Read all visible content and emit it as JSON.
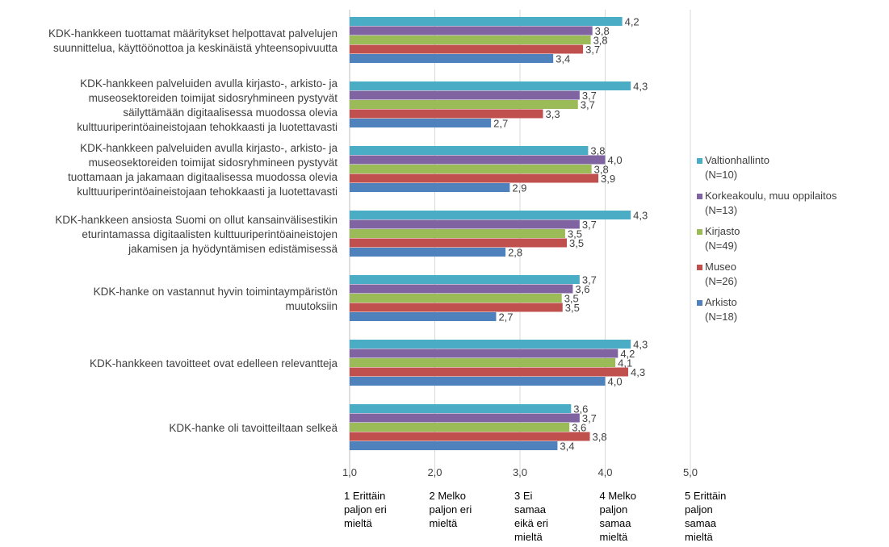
{
  "chart_data": {
    "type": "bar",
    "orientation": "horizontal",
    "categories": [
      [
        "KDK-hankkeen tuottamat määritykset helpottavat palvelujen",
        "suunnittelua, käyttöönottoa ja keskinäistä yhteensopivuutta"
      ],
      [
        "KDK-hankkeen palveluiden avulla kirjasto-, arkisto- ja",
        "museosektoreiden toimijat sidosryhmineen pystyvät",
        "säilyttämään digitaalisessa muodossa olevia",
        "kulttuuriperintöaineistojaan tehokkaasti ja luotettavasti"
      ],
      [
        "KDK-hankkeen palveluiden avulla kirjasto-, arkisto- ja",
        "museosektoreiden toimijat sidosryhmineen pystyvät",
        "tuottamaan ja jakamaan digitaalisessa muodossa olevia",
        "kulttuuriperintöaineistojaan tehokkaasti ja luotettavasti"
      ],
      [
        "KDK-hankkeen ansiosta Suomi on ollut kansainvälisestikin",
        "eturintamassa digitaalisten kulttuuriperintöaineistojen",
        "jakamisen ja hyödyntämisen edistämisessä"
      ],
      [
        "KDK-hanke on vastannut hyvin toimintaympäristön",
        "muutoksiin"
      ],
      [
        "KDK-hankkeen tavoitteet ovat edelleen relevantteja"
      ],
      [
        "KDK-hanke oli tavoitteiltaan selkeä"
      ]
    ],
    "series": [
      {
        "name": "Valtionhallinto",
        "n": "(N=10)",
        "color": "#4bacc6",
        "values": [
          4.2,
          4.3,
          3.8,
          4.3,
          3.7,
          4.3,
          3.6
        ],
        "labels": [
          "4,2",
          "4,3",
          "3,8",
          "4,3",
          "3,7",
          "4,3",
          "3,6"
        ]
      },
      {
        "name": "Korkeakoulu, muu oppilaitos",
        "n": "(N=13)",
        "color": "#8064a2",
        "values": [
          3.85,
          3.7,
          4.0,
          3.7,
          3.62,
          4.15,
          3.7
        ],
        "labels": [
          "3,8",
          "3,7",
          "4,0",
          "3,7",
          "3,6",
          "4,2",
          "3,7"
        ]
      },
      {
        "name": "Kirjasto",
        "n": "(N=49)",
        "color": "#9bbb59",
        "values": [
          3.83,
          3.68,
          3.84,
          3.53,
          3.49,
          4.12,
          3.58
        ],
        "labels": [
          "3,8",
          "3,7",
          "3,8",
          "3,5",
          "3,5",
          "4,1",
          "3,6"
        ]
      },
      {
        "name": "Museo",
        "n": "(N=26)",
        "color": "#c0504d",
        "values": [
          3.74,
          3.27,
          3.92,
          3.55,
          3.5,
          4.27,
          3.82
        ],
        "labels": [
          "3,7",
          "3,3",
          "3,9",
          "3,5",
          "3,5",
          "4,3",
          "3,8"
        ]
      },
      {
        "name": "Arkisto",
        "n": "(N=18)",
        "color": "#4f81bd",
        "values": [
          3.39,
          2.66,
          2.88,
          2.83,
          2.72,
          4.0,
          3.44
        ],
        "labels": [
          "3,4",
          "2,7",
          "2,9",
          "2,8",
          "2,7",
          "4,0",
          "3,4"
        ]
      }
    ],
    "xlim": [
      1,
      5
    ],
    "xticks": [
      1,
      2,
      3,
      4,
      5
    ],
    "xtick_labels": [
      "1,0",
      "2,0",
      "3,0",
      "4,0",
      "5,0"
    ],
    "scale_labels": [
      [
        "1 Erittäin",
        "paljon eri",
        "mieltä"
      ],
      [
        "2 Melko",
        "paljon eri",
        "mieltä"
      ],
      [
        "3 Ei",
        "samaa",
        "eikä eri",
        "mieltä"
      ],
      [
        "4 Melko",
        "paljon",
        "samaa",
        "mieltä"
      ],
      [
        "5 Erittäin",
        "paljon",
        "samaa",
        "mieltä"
      ]
    ],
    "gridlines": true,
    "legend": "right"
  }
}
